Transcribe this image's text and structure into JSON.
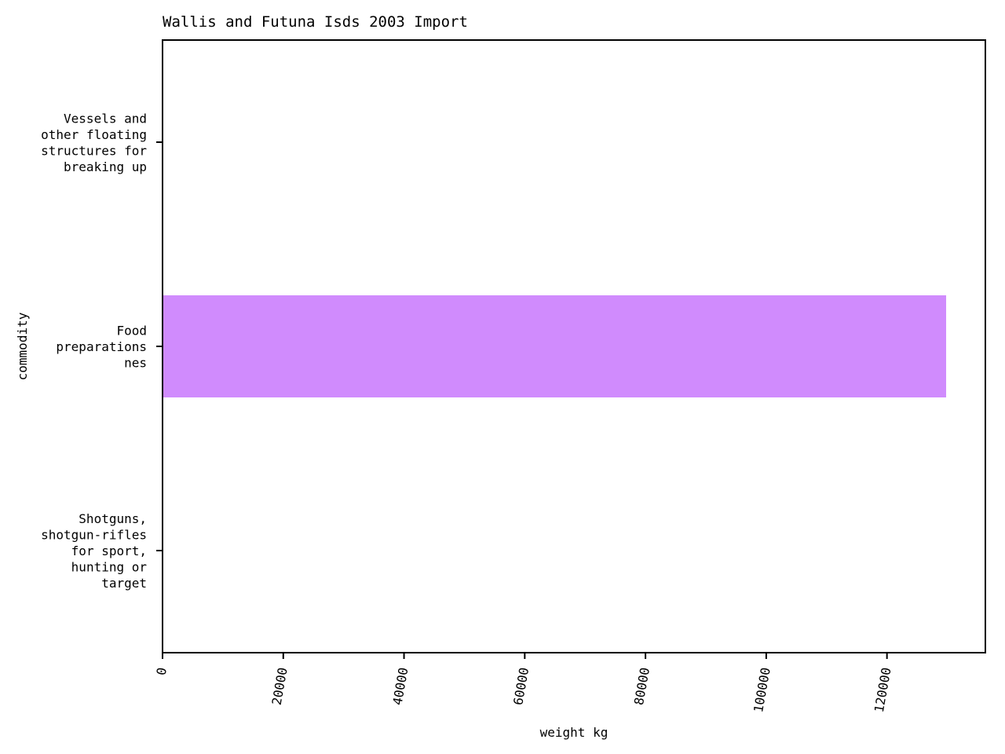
{
  "chart_data": {
    "type": "bar",
    "orientation": "horizontal",
    "title": "Wallis and Futuna Isds 2003 Import",
    "xlabel": "weight kg",
    "ylabel": "commodity",
    "categories": [
      "Vessels and other floating structures for breaking up",
      "Food preparations nes",
      "Shotguns, shotgun-rifles for sport, hunting or target"
    ],
    "category_lines": [
      [
        "Vessels and",
        "other floating",
        "structures for",
        "breaking up"
      ],
      [
        "Food",
        "preparations",
        "nes"
      ],
      [
        "Shotguns,",
        "shotgun-rifles",
        "for sport,",
        "hunting or",
        "target"
      ]
    ],
    "values": [
      0,
      129800,
      0
    ],
    "xlim": [
      0,
      136300
    ],
    "xticks": [
      0,
      20000,
      40000,
      60000,
      80000,
      100000,
      120000
    ],
    "bar_color": "#d08bfd",
    "grid": false
  }
}
